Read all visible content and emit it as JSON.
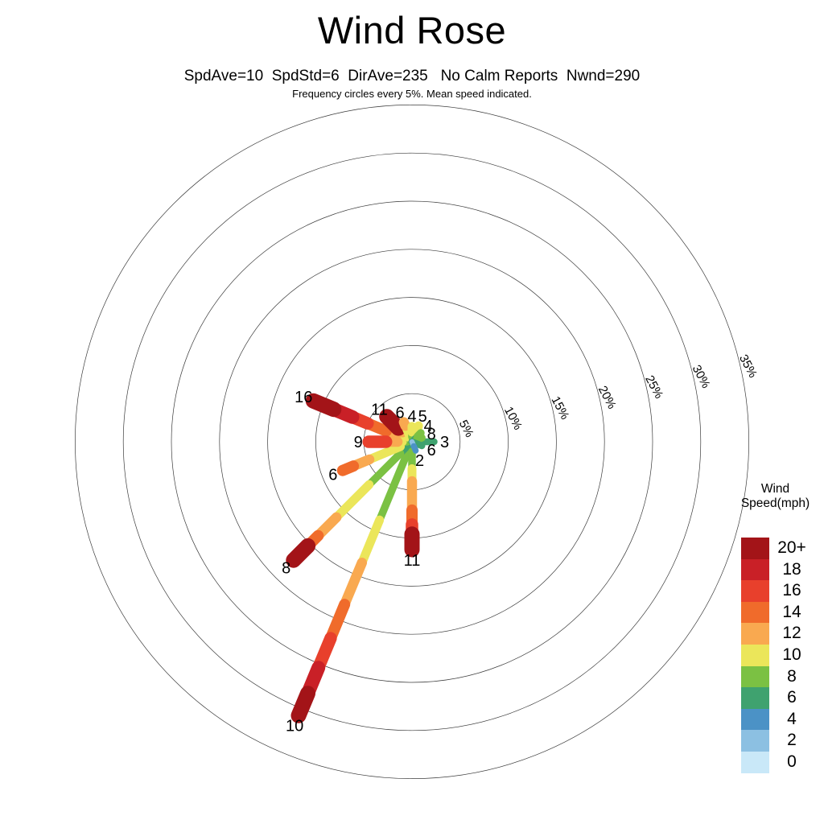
{
  "title": "Wind Rose",
  "subtitle": "SpdAve=10  SpdStd=6  DirAve=235   No Calm Reports  Nwnd=290",
  "note": "Frequency circles every 5%. Mean speed indicated.",
  "legend": {
    "title": "Wind Speed(mph)",
    "entries": [
      {
        "label": "20+",
        "color": "#a31418"
      },
      {
        "label": "18",
        "color": "#c92027"
      },
      {
        "label": "16",
        "color": "#e8402c"
      },
      {
        "label": "14",
        "color": "#f06b2b"
      },
      {
        "label": "12",
        "color": "#f9a950"
      },
      {
        "label": "10",
        "color": "#ebe65a"
      },
      {
        "label": "8",
        "color": "#7bc143"
      },
      {
        "label": "6",
        "color": "#3fa26f"
      },
      {
        "label": "4",
        "color": "#4b92c6"
      },
      {
        "label": "2",
        "color": "#8cc0e2"
      },
      {
        "label": "0",
        "color": "#c9e8f8"
      }
    ]
  },
  "chart_data": {
    "type": "wind_rose",
    "units": "mph",
    "ring_step_pct": 5,
    "rings": [
      "5%",
      "10%",
      "15%",
      "20%",
      "25%",
      "30%",
      "35%"
    ],
    "stats": {
      "SpdAve": 10,
      "SpdStd": 6,
      "DirAve": 235,
      "calm": "No Calm Reports",
      "Nwnd": 290
    },
    "petals": [
      {
        "dir": "N",
        "mean": "4",
        "segments": [
          {
            "bin": "4",
            "pct": 0.5
          },
          {
            "bin": "8",
            "pct": 0.5
          },
          {
            "bin": "10",
            "pct": 0.6
          }
        ]
      },
      {
        "dir": "NNE",
        "mean": "5",
        "segments": [
          {
            "bin": "4",
            "pct": 0.4
          },
          {
            "bin": "6",
            "pct": 0.4
          },
          {
            "bin": "10",
            "pct": 1.0
          }
        ]
      },
      {
        "dir": "NE",
        "mean": "4",
        "segments": [
          {
            "bin": "4",
            "pct": 0.4
          },
          {
            "bin": "6",
            "pct": 0.4
          },
          {
            "bin": "8",
            "pct": 0.5
          }
        ]
      },
      {
        "dir": "ENE",
        "mean": "8",
        "segments": [
          {
            "bin": "6",
            "pct": 0.5
          },
          {
            "bin": "8",
            "pct": 0.6
          }
        ]
      },
      {
        "dir": "E",
        "mean": "3",
        "segments": [
          {
            "bin": "4",
            "pct": 0.7
          },
          {
            "bin": "6",
            "pct": 1.6
          }
        ]
      },
      {
        "dir": "ESE",
        "mean": "6",
        "segments": [
          {
            "bin": "6",
            "pct": 1.1
          }
        ]
      },
      {
        "dir": "SSE",
        "mean": "2",
        "segments": [
          {
            "bin": "2",
            "pct": 0.5
          },
          {
            "bin": "4",
            "pct": 0.5
          }
        ]
      },
      {
        "dir": "S",
        "mean": "11",
        "segments": [
          {
            "bin": "6",
            "pct": 1.0
          },
          {
            "bin": "8",
            "pct": 1.8
          },
          {
            "bin": "10",
            "pct": 1.3
          },
          {
            "bin": "12",
            "pct": 3.0
          },
          {
            "bin": "14",
            "pct": 1.5
          },
          {
            "bin": "16",
            "pct": 1.0
          },
          {
            "bin": "20+",
            "pct": 1.6
          }
        ]
      },
      {
        "dir": "SSW",
        "mean": "10",
        "segments": [
          {
            "bin": "6",
            "pct": 1.0
          },
          {
            "bin": "8",
            "pct": 7.8
          },
          {
            "bin": "10",
            "pct": 4.8
          },
          {
            "bin": "12",
            "pct": 4.7
          },
          {
            "bin": "14",
            "pct": 3.8
          },
          {
            "bin": "16",
            "pct": 3.3
          },
          {
            "bin": "18",
            "pct": 2.9
          },
          {
            "bin": "20+",
            "pct": 2.5
          }
        ]
      },
      {
        "dir": "SW",
        "mean": "8",
        "segments": [
          {
            "bin": "4",
            "pct": 0.7
          },
          {
            "bin": "6",
            "pct": 1.0
          },
          {
            "bin": "8",
            "pct": 4.6
          },
          {
            "bin": "10",
            "pct": 4.8
          },
          {
            "bin": "12",
            "pct": 2.7
          },
          {
            "bin": "14",
            "pct": 1.5
          },
          {
            "bin": "20+",
            "pct": 2.1
          }
        ]
      },
      {
        "dir": "WSW",
        "mean": "6",
        "segments": [
          {
            "bin": "6",
            "pct": 1.3
          },
          {
            "bin": "10",
            "pct": 3.5
          },
          {
            "bin": "12",
            "pct": 1.8
          },
          {
            "bin": "14",
            "pct": 1.2
          }
        ]
      },
      {
        "dir": "W",
        "mean": "9",
        "segments": [
          {
            "bin": "6",
            "pct": 0.5
          },
          {
            "bin": "8",
            "pct": 0.5
          },
          {
            "bin": "10",
            "pct": 0.5
          },
          {
            "bin": "12",
            "pct": 1.2
          },
          {
            "bin": "16",
            "pct": 1.8
          }
        ]
      },
      {
        "dir": "WNW",
        "mean": "16",
        "segments": [
          {
            "bin": "8",
            "pct": 0.7
          },
          {
            "bin": "10",
            "pct": 0.8
          },
          {
            "bin": "12",
            "pct": 1.4
          },
          {
            "bin": "14",
            "pct": 2.1
          },
          {
            "bin": "16",
            "pct": 1.7
          },
          {
            "bin": "18",
            "pct": 2.1
          },
          {
            "bin": "20+",
            "pct": 2.3
          }
        ]
      },
      {
        "dir": "NW",
        "mean": "11",
        "segments": [
          {
            "bin": "8",
            "pct": 0.7
          },
          {
            "bin": "10",
            "pct": 0.7
          },
          {
            "bin": "12",
            "pct": 0.6
          },
          {
            "bin": "20+",
            "pct": 1.7
          }
        ]
      },
      {
        "dir": "NNW",
        "mean": "6",
        "segments": [
          {
            "bin": "6",
            "pct": 0.5
          },
          {
            "bin": "10",
            "pct": 1.3
          },
          {
            "bin": "12",
            "pct": 0.4
          }
        ]
      }
    ]
  }
}
